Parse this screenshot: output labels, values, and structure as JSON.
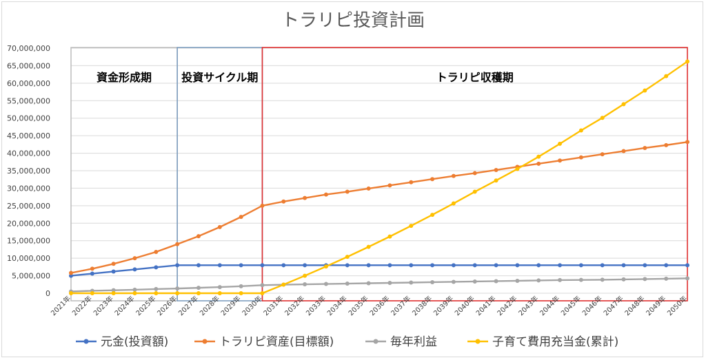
{
  "chart_data": {
    "type": "line",
    "title": "トラリピ投資計画",
    "x": [
      "2021年",
      "2022年",
      "2023年",
      "2024年",
      "2025年",
      "2026年",
      "2027年",
      "2028年",
      "2029年",
      "2030年",
      "2031年",
      "2032年",
      "2033年",
      "2034年",
      "2035年",
      "2036年",
      "2037年",
      "2038年",
      "2039年",
      "2040年",
      "2041年",
      "2042年",
      "2043年",
      "2044年",
      "2045年",
      "2046年",
      "2047年",
      "2048年",
      "2049年",
      "2050年"
    ],
    "ylim": [
      0,
      70000000
    ],
    "yticks": [
      "0",
      "5,000,000",
      "10,000,000",
      "15,000,000",
      "20,000,000",
      "25,000,000",
      "30,000,000",
      "35,000,000",
      "40,000,000",
      "45,000,000",
      "50,000,000",
      "55,000,000",
      "60,000,000",
      "65,000,000",
      "70,000,000"
    ],
    "grid": true,
    "legend_position": "bottom",
    "series": [
      {
        "name": "元金(投資額)",
        "color": "#4472c4",
        "values": [
          5000000,
          5600000,
          6200000,
          6800000,
          7400000,
          8000000,
          8000000,
          8000000,
          8000000,
          8000000,
          8000000,
          8000000,
          8000000,
          8000000,
          8000000,
          8000000,
          8000000,
          8000000,
          8000000,
          8000000,
          8000000,
          8000000,
          8000000,
          8000000,
          8000000,
          8000000,
          8000000,
          8000000,
          8000000,
          8000000
        ]
      },
      {
        "name": "トラリピ資産(目標額)",
        "color": "#ed7d31",
        "values": [
          5800000,
          7000000,
          8400000,
          10000000,
          11800000,
          14000000,
          16300000,
          18900000,
          21800000,
          25000000,
          26200000,
          27200000,
          28200000,
          29000000,
          29900000,
          30800000,
          31700000,
          32600000,
          33500000,
          34300000,
          35200000,
          36100000,
          37000000,
          37900000,
          38800000,
          39700000,
          40600000,
          41500000,
          42300000,
          43200000
        ]
      },
      {
        "name": "毎年利益",
        "color": "#a5a5a5",
        "values": [
          500000,
          700000,
          850000,
          1000000,
          1200000,
          1350000,
          1550000,
          1750000,
          2000000,
          2300000,
          2450000,
          2550000,
          2650000,
          2750000,
          2850000,
          2950000,
          3050000,
          3150000,
          3250000,
          3350000,
          3450000,
          3550000,
          3650000,
          3750000,
          3800000,
          3850000,
          3950000,
          4050000,
          4150000,
          4250000
        ]
      },
      {
        "name": "子育て費用充当金(累計)",
        "color": "#ffc000",
        "values": [
          0,
          0,
          0,
          0,
          0,
          0,
          0,
          0,
          0,
          0,
          2450000,
          5000000,
          7650000,
          10400000,
          13250000,
          16200000,
          19250000,
          22400000,
          25650000,
          29000000,
          32200000,
          35500000,
          39000000,
          42700000,
          46500000,
          50100000,
          54000000,
          57900000,
          62000000,
          66200000
        ]
      }
    ],
    "regions": [
      {
        "label": "資金形成期",
        "color": "#bfbfbf",
        "from": 0,
        "to": 5
      },
      {
        "label": "投資サイクル期",
        "color": "#7f9fc0",
        "from": 5,
        "to": 9
      },
      {
        "label": "トラリピ収穫期",
        "color": "#e03030",
        "from": 9,
        "to": 29
      }
    ]
  }
}
